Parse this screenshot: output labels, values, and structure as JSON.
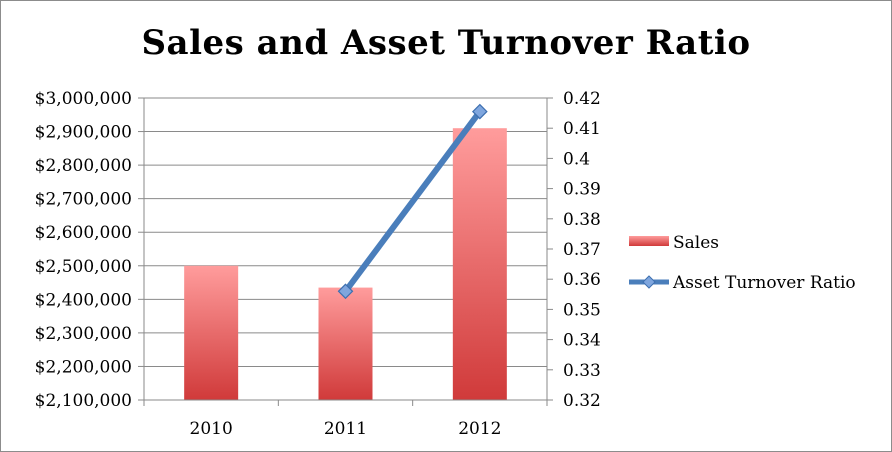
{
  "chart_data": {
    "type": "bar",
    "title": "Sales and Asset Turnover Ratio",
    "categories": [
      "2010",
      "2011",
      "2012"
    ],
    "series": [
      {
        "name": "Sales",
        "type": "bar",
        "axis": "left",
        "values": [
          2500000,
          2435000,
          2910000
        ],
        "color": "#d94a4a"
      },
      {
        "name": "Asset Turnover Ratio",
        "type": "line",
        "axis": "right",
        "values": [
          null,
          0.356,
          0.4155
        ],
        "color": "#4a7ebb"
      }
    ],
    "y_left": {
      "min": 2100000,
      "max": 3000000,
      "step": 100000,
      "tick_labels": [
        "$2,100,000",
        "$2,200,000",
        "$2,300,000",
        "$2,400,000",
        "$2,500,000",
        "$2,600,000",
        "$2,700,000",
        "$2,800,000",
        "$2,900,000",
        "$3,000,000"
      ]
    },
    "y_right": {
      "min": 0.32,
      "max": 0.42,
      "step": 0.01,
      "tick_labels": [
        "0.32",
        "0.33",
        "0.34",
        "0.35",
        "0.36",
        "0.37",
        "0.38",
        "0.39",
        "0.4",
        "0.41",
        "0.42"
      ]
    },
    "grid": true,
    "legend": "right"
  }
}
